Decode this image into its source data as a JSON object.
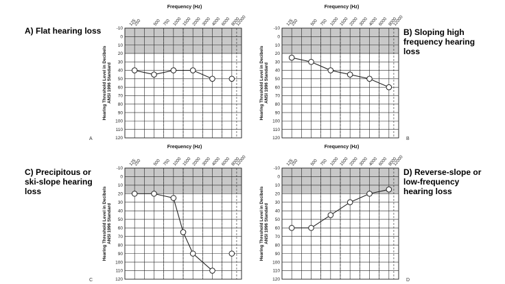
{
  "captions": {
    "a": "A) Flat hearing loss",
    "b": "B) Sloping high\nfrequency hearing\nloss",
    "c": "C) Precipitous or\nski-slope hearing\nloss",
    "d": "D) Reverse-slope or\nlow-frequency\nhearing loss"
  },
  "axis": {
    "xlabel": "Frequency (Hz)",
    "ylabel_line1": "Hearing Threshold Level in Decibels",
    "ylabel_line2": "ANSI 1996 Standard",
    "frequency_ticks": [
      "125",
      "250",
      "500",
      "750",
      "1000",
      "1500",
      "2000",
      "3000",
      "4000",
      "6000",
      "8000",
      "12000"
    ],
    "db_ticks": [
      -10,
      0,
      10,
      20,
      30,
      40,
      50,
      60,
      70,
      80,
      90,
      100,
      110,
      120
    ],
    "ylim": [
      -10,
      120
    ],
    "shaded_range_db": [
      -10,
      20
    ]
  },
  "colors": {
    "shade": "#c8c8c8",
    "grid": "#222222",
    "line": "#222222"
  },
  "chart_data": [
    {
      "type": "line",
      "panel_letter": "A",
      "title": "A) Flat hearing loss",
      "xlabel": "Frequency (Hz)",
      "ylabel": "Hearing Threshold Level in Decibels ANSI 1996 Standard",
      "ylim": [
        -10,
        120
      ],
      "y_inverted": true,
      "points": [
        {
          "freq": "250",
          "db": 40
        },
        {
          "freq": "500",
          "db": 45
        },
        {
          "freq": "1000",
          "db": 40
        },
        {
          "freq": "2000",
          "db": 40
        },
        {
          "freq": "4000",
          "db": 50
        },
        {
          "freq": "8000",
          "db": 50
        }
      ],
      "connect_to": 5
    },
    {
      "type": "line",
      "panel_letter": "B",
      "title": "B) Sloping high frequency hearing loss",
      "xlabel": "Frequency (Hz)",
      "ylabel": "Hearing Threshold Level in Decibels ANSI 1996 Standard",
      "ylim": [
        -10,
        120
      ],
      "y_inverted": true,
      "points": [
        {
          "freq": "250",
          "db": 25
        },
        {
          "freq": "500",
          "db": 30
        },
        {
          "freq": "1000",
          "db": 40
        },
        {
          "freq": "2000",
          "db": 45
        },
        {
          "freq": "4000",
          "db": 50
        },
        {
          "freq": "8000",
          "db": 60
        }
      ],
      "connect_to": 6
    },
    {
      "type": "line",
      "panel_letter": "C",
      "title": "C) Precipitous or ski-slope hearing loss",
      "xlabel": "Frequency (Hz)",
      "ylabel": "Hearing Threshold Level in Decibels ANSI 1996 Standard",
      "ylim": [
        -10,
        120
      ],
      "y_inverted": true,
      "points": [
        {
          "freq": "250",
          "db": 20
        },
        {
          "freq": "500",
          "db": 20
        },
        {
          "freq": "1000",
          "db": 25
        },
        {
          "freq": "1500",
          "db": 65
        },
        {
          "freq": "2000",
          "db": 90
        },
        {
          "freq": "4000",
          "db": 110
        },
        {
          "freq": "8000",
          "db": 90
        }
      ],
      "connect_to": 6
    },
    {
      "type": "line",
      "panel_letter": "D",
      "title": "D) Reverse-slope or low-frequency hearing loss",
      "xlabel": "Frequency (Hz)",
      "ylabel": "Hearing Threshold Level in Decibels ANSI 1996 Standard",
      "ylim": [
        -10,
        120
      ],
      "y_inverted": true,
      "points": [
        {
          "freq": "250",
          "db": 60
        },
        {
          "freq": "500",
          "db": 60
        },
        {
          "freq": "1000",
          "db": 45
        },
        {
          "freq": "2000",
          "db": 30
        },
        {
          "freq": "4000",
          "db": 20
        },
        {
          "freq": "8000",
          "db": 15
        }
      ],
      "connect_to": 6
    }
  ]
}
